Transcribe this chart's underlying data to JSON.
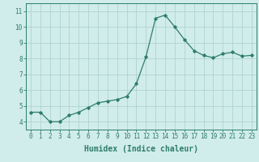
{
  "x": [
    0,
    1,
    2,
    3,
    4,
    5,
    6,
    7,
    8,
    9,
    10,
    11,
    12,
    13,
    14,
    15,
    16,
    17,
    18,
    19,
    20,
    21,
    22,
    23
  ],
  "y": [
    4.6,
    4.6,
    4.0,
    4.0,
    4.4,
    4.6,
    4.9,
    5.2,
    5.3,
    5.4,
    5.6,
    6.4,
    8.1,
    10.55,
    10.75,
    10.0,
    9.2,
    8.5,
    8.2,
    8.05,
    8.3,
    8.4,
    8.15,
    8.2
  ],
  "line_color": "#2e7d6e",
  "marker": "D",
  "markersize": 1.8,
  "linewidth": 0.9,
  "bg_color": "#d0eceb",
  "grid_color": "#b0d4d0",
  "xlabel": "Humidex (Indice chaleur)",
  "xlim": [
    -0.5,
    23.5
  ],
  "ylim": [
    3.5,
    11.5
  ],
  "yticks": [
    4,
    5,
    6,
    7,
    8,
    9,
    10,
    11
  ],
  "xticks": [
    0,
    1,
    2,
    3,
    4,
    5,
    6,
    7,
    8,
    9,
    10,
    11,
    12,
    13,
    14,
    15,
    16,
    17,
    18,
    19,
    20,
    21,
    22,
    23
  ],
  "tick_label_fontsize": 5.5,
  "xlabel_fontsize": 7.0
}
